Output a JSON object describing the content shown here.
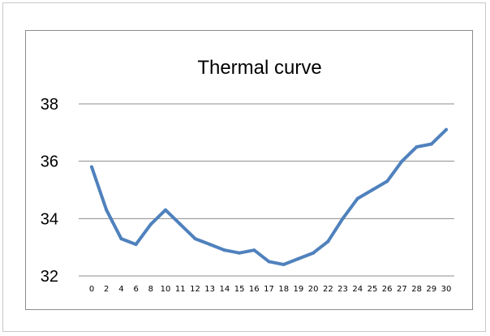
{
  "chart_data": {
    "type": "line",
    "title": "Thermal curve",
    "xlabel": "",
    "ylabel": "",
    "categories": [
      "0",
      "2",
      "4",
      "6",
      "8",
      "10",
      "11",
      "12",
      "13",
      "14",
      "15",
      "16",
      "17",
      "18",
      "19",
      "20",
      "22",
      "23",
      "24",
      "25",
      "26",
      "27",
      "28",
      "29",
      "30"
    ],
    "series": [
      {
        "values": [
          35.8,
          34.3,
          33.3,
          33.1,
          33.8,
          34.3,
          33.8,
          33.3,
          33.1,
          32.9,
          32.8,
          32.9,
          32.5,
          32.4,
          32.6,
          32.8,
          33.2,
          34.0,
          34.7,
          35.0,
          35.3,
          36.0,
          36.5,
          36.6,
          37.1
        ]
      }
    ],
    "ylim": [
      32,
      38
    ],
    "yticks": [
      32,
      34,
      36,
      38
    ],
    "grid": true,
    "line_color": "#4f81bd",
    "grid_color": "#8c8c8c"
  }
}
